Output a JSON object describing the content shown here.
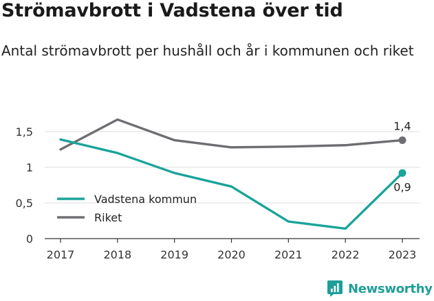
{
  "title": "Strömavbrott i Vadstena över tid",
  "subtitle": "Antal strömavbrott per hushåll och år i kommunen och riket",
  "brand": "Newsworthy",
  "colors": {
    "vadstena": "#1aa39a",
    "riket": "#6d6e71",
    "grid": "#dcdcdc",
    "axis": "#333333",
    "brand": "#1f9e98"
  },
  "chart_data": {
    "type": "line",
    "x": [
      2017,
      2018,
      2019,
      2020,
      2021,
      2022,
      2023
    ],
    "x_tick_labels": [
      "2017",
      "2018",
      "2019",
      "2020",
      "2021",
      "2022",
      "2023"
    ],
    "y_ticks": [
      0,
      0.5,
      1,
      1.5
    ],
    "y_tick_labels": [
      "0",
      "0,5",
      "1",
      "1,5"
    ],
    "ylim": [
      0,
      1.5
    ],
    "grid": true,
    "legend_position": "bottom-left",
    "series": [
      {
        "name": "Vadstena kommun",
        "color": "#1aa39a",
        "values": [
          1.39,
          1.2,
          0.92,
          0.73,
          0.24,
          0.14,
          0.92
        ],
        "end_label": "0,9"
      },
      {
        "name": "Riket",
        "color": "#6d6e71",
        "values": [
          1.25,
          1.67,
          1.38,
          1.28,
          1.29,
          1.31,
          1.38
        ],
        "end_label": "1,4"
      }
    ]
  }
}
